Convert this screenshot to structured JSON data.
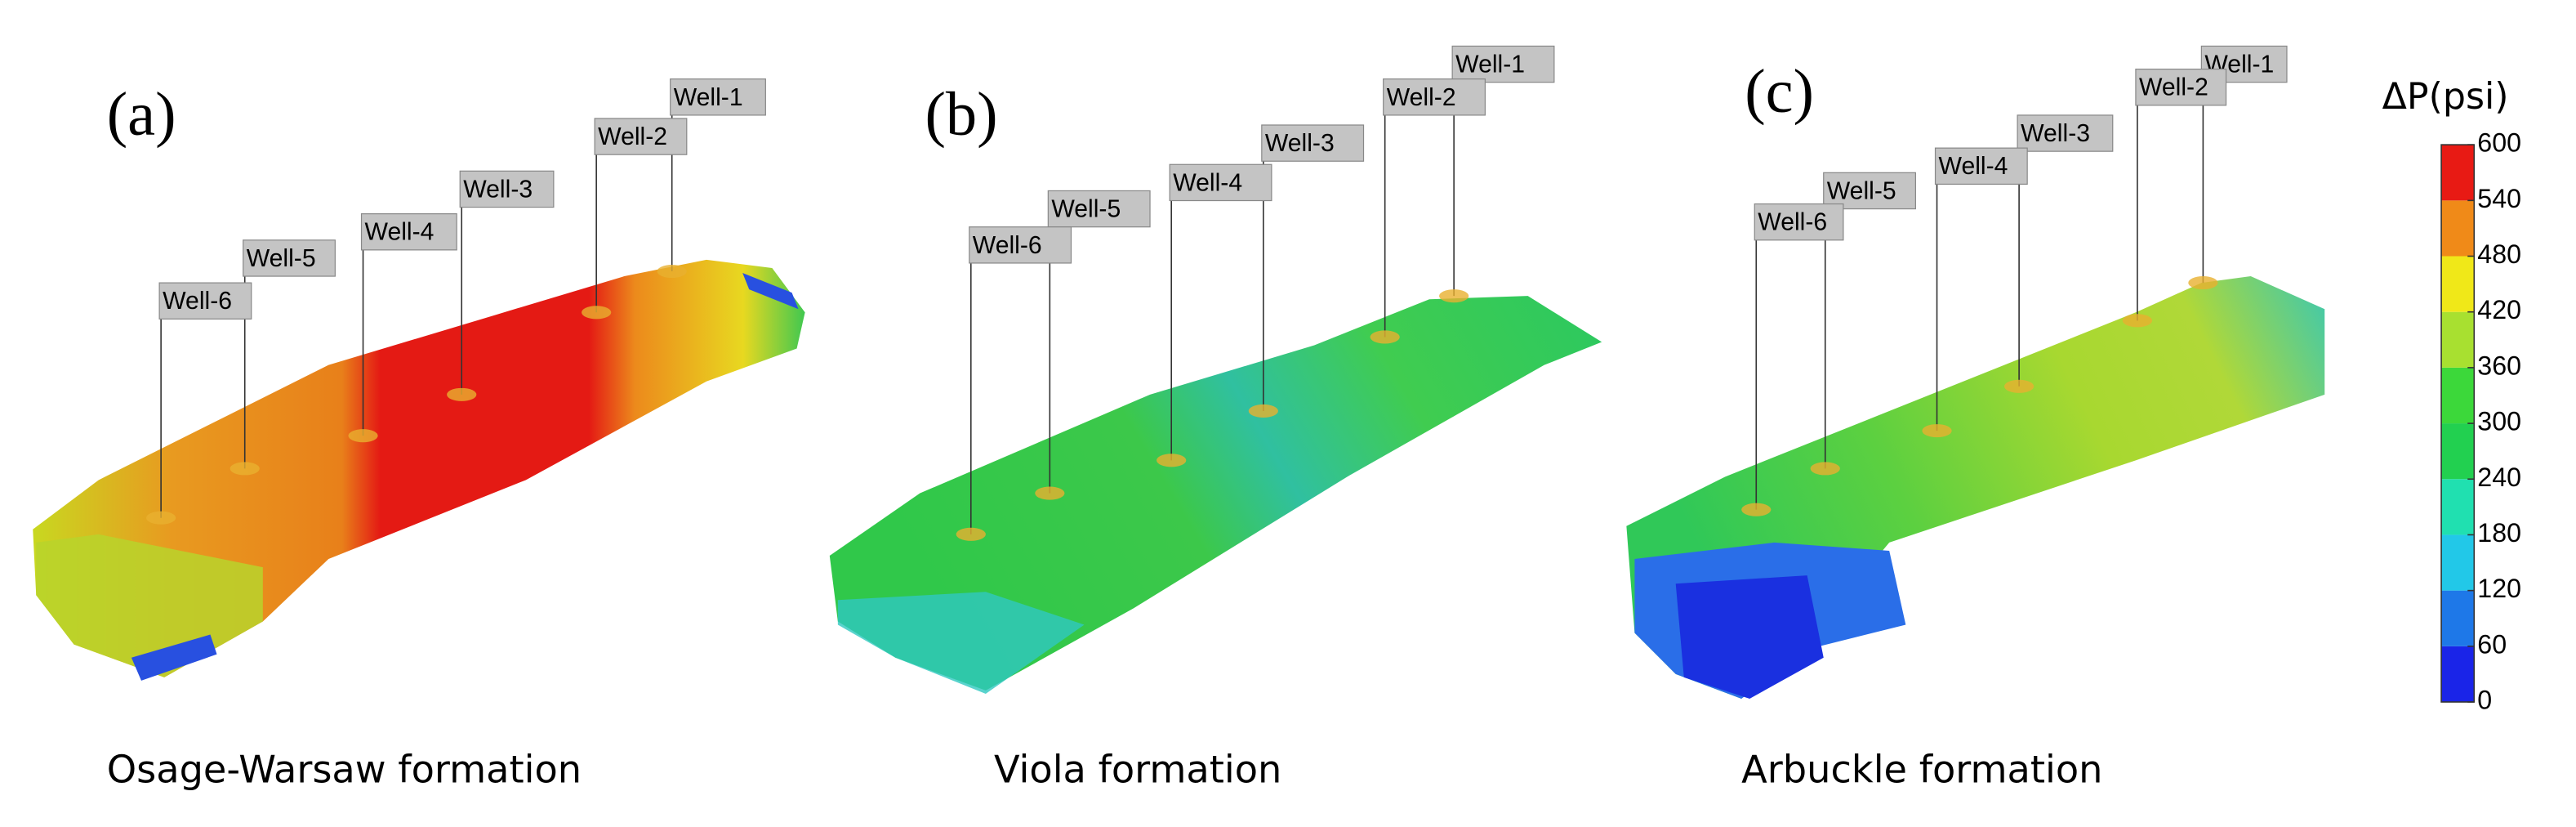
{
  "panels": [
    {
      "label": "(a)",
      "caption": "Osage-Warsaw formation",
      "wells": [
        "Well-1",
        "Well-2",
        "Well-3",
        "Well-4",
        "Well-5",
        "Well-6"
      ]
    },
    {
      "label": "(b)",
      "caption": "Viola formation",
      "wells": [
        "Well-1",
        "Well-2",
        "Well-3",
        "Well-4",
        "Well-5",
        "Well-6"
      ]
    },
    {
      "label": "(c)",
      "caption": "Arbuckle formation",
      "wells": [
        "Well-1",
        "Well-2",
        "Well-3",
        "Well-4",
        "Well-5",
        "Well-6"
      ]
    }
  ],
  "colorbar": {
    "title": "ΔP(psi)",
    "ticks": [
      0,
      60,
      120,
      180,
      240,
      300,
      360,
      420,
      480,
      540,
      600
    ],
    "colors": [
      "#1a24e8",
      "#1e78e8",
      "#22c8e8",
      "#20e0b0",
      "#22d050",
      "#3cd83a",
      "#a8e030",
      "#f0e818",
      "#f08a18",
      "#e81a14"
    ]
  }
}
